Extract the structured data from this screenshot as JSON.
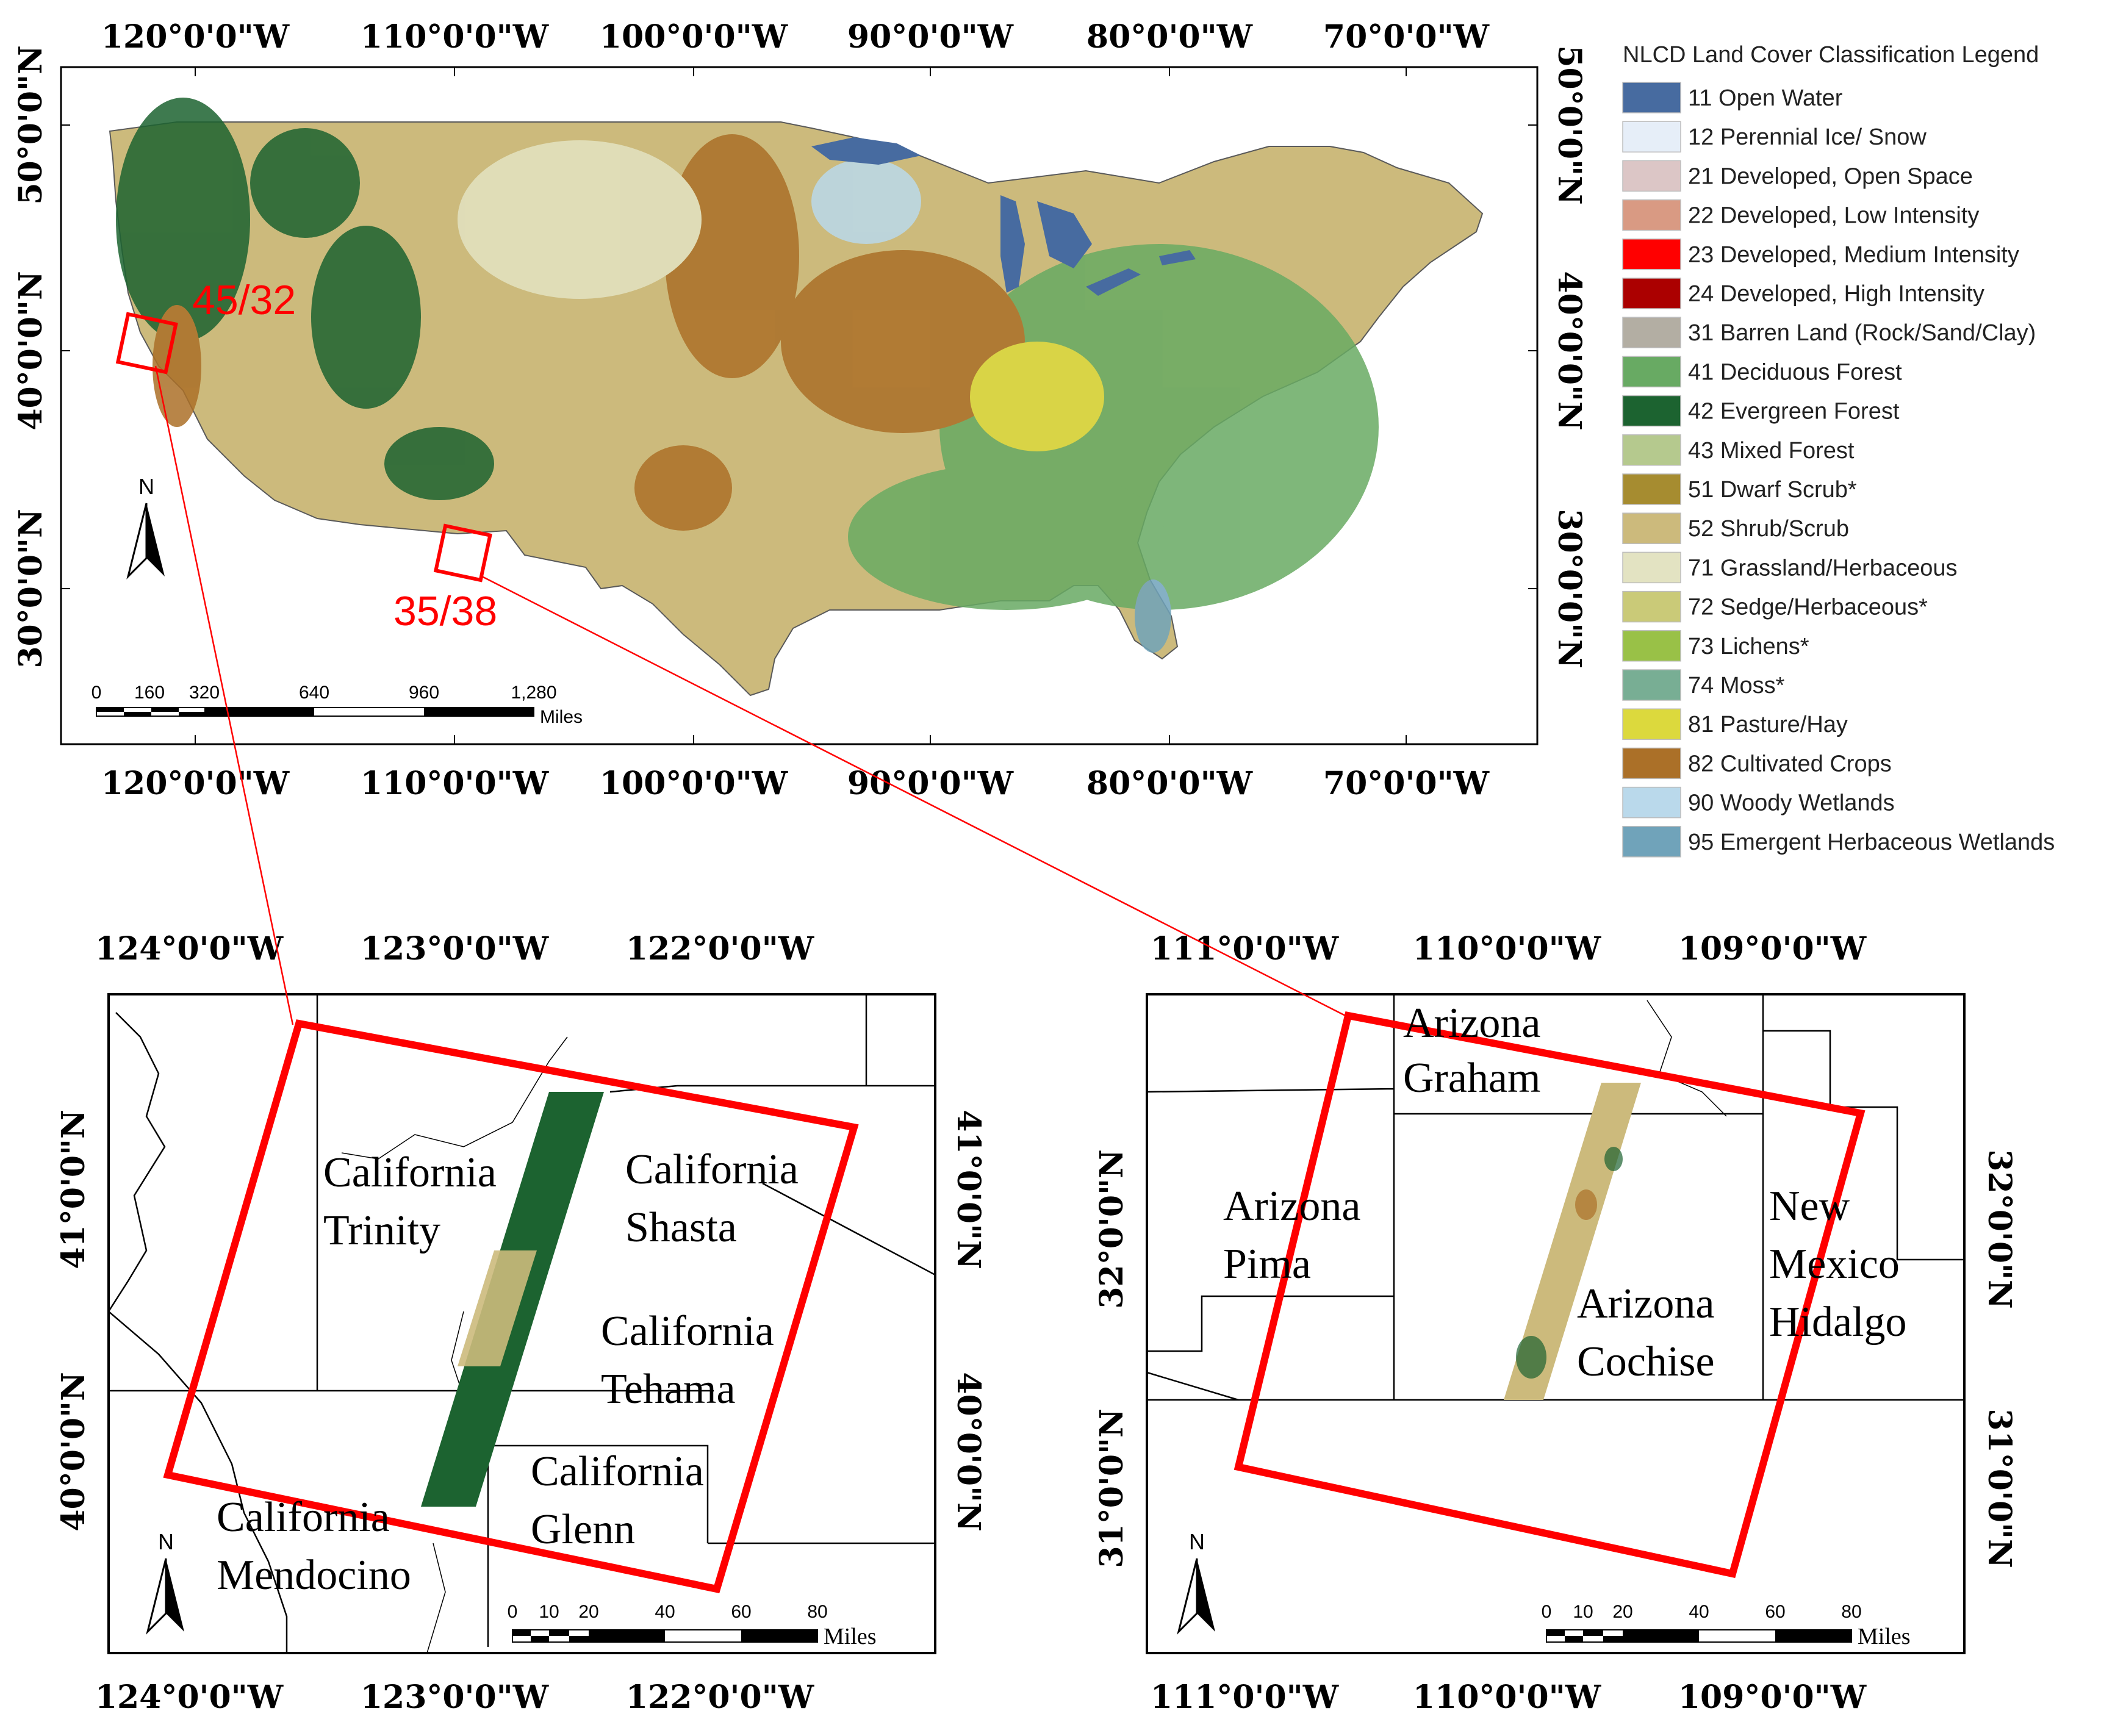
{
  "overview_map": {
    "lon_ticks": [
      "120°0'0\"W",
      "110°0'0\"W",
      "100°0'0\"W",
      "90°0'0\"W",
      "80°0'0\"W",
      "70°0'0\"W"
    ],
    "lat_ticks": [
      "50°0'0\"N",
      "40°0'0\"N",
      "30°0'0\"N"
    ],
    "scenes": [
      "45/32",
      "35/38"
    ],
    "scale_labels": [
      "0",
      "160",
      "320",
      "640",
      "960",
      "1,280"
    ],
    "scale_unit": "Miles",
    "north": "N"
  },
  "legend": {
    "title": "NLCD Land Cover Classification Legend",
    "items": [
      {
        "label": "11 Open Water",
        "color": "#476ba0"
      },
      {
        "label": "12 Perennial Ice/ Snow",
        "color": "#e6eef8"
      },
      {
        "label": "21 Developed, Open Space",
        "color": "#dcc6c6"
      },
      {
        "label": "22 Developed, Low Intensity",
        "color": "#d99a83"
      },
      {
        "label": "23 Developed, Medium Intensity",
        "color": "#ff0000"
      },
      {
        "label": "24 Developed, High Intensity",
        "color": "#ab0000"
      },
      {
        "label": "31 Barren Land (Rock/Sand/Clay)",
        "color": "#b3aea3"
      },
      {
        "label": "41 Deciduous Forest",
        "color": "#68aa63"
      },
      {
        "label": "42 Evergreen Forest",
        "color": "#1c6330"
      },
      {
        "label": "43 Mixed Forest",
        "color": "#b5c98e"
      },
      {
        "label": "51 Dwarf Scrub*",
        "color": "#a68c30"
      },
      {
        "label": "52 Shrub/Scrub",
        "color": "#ccba7c"
      },
      {
        "label": "71 Grassland/Herbaceous",
        "color": "#e3e3c2"
      },
      {
        "label": "72 Sedge/Herbaceous*",
        "color": "#caca78"
      },
      {
        "label": "73 Lichens*",
        "color": "#99c147"
      },
      {
        "label": "74 Moss*",
        "color": "#78ae94"
      },
      {
        "label": "81 Pasture/Hay",
        "color": "#dcd93d"
      },
      {
        "label": "82 Cultivated Crops",
        "color": "#ab7028"
      },
      {
        "label": "90 Woody Wetlands",
        "color": "#bad9eb"
      },
      {
        "label": "95 Emergent Herbaceous Wetlands",
        "color": "#70a3ba"
      }
    ]
  },
  "california_map": {
    "lon_ticks": [
      "124°0'0\"W",
      "123°0'0\"W",
      "122°0'0\"W"
    ],
    "lat_ticks": [
      "41°0'0\"N",
      "40°0'0\"N"
    ],
    "counties": [
      [
        "California",
        "Trinity"
      ],
      [
        "California",
        "Shasta"
      ],
      [
        "California",
        "Tehama"
      ],
      [
        "California",
        "Glenn"
      ],
      [
        "California",
        "Mendocino"
      ]
    ],
    "scale_labels": [
      "0",
      "10",
      "20",
      "40",
      "60",
      "80"
    ],
    "scale_unit": "Miles",
    "north": "N"
  },
  "arizona_map": {
    "lon_ticks": [
      "111°0'0\"W",
      "110°0'0\"W",
      "109°0'0\"W"
    ],
    "lat_ticks": [
      "32°0'0\"N",
      "31°0'0\"N"
    ],
    "counties": [
      [
        "Arizona",
        "Graham"
      ],
      [
        "Arizona",
        "Pima"
      ],
      [
        "Arizona",
        "Cochise"
      ],
      [
        "New",
        "Mexico",
        "Hidalgo"
      ]
    ],
    "scale_labels": [
      "0",
      "10",
      "20",
      "40",
      "60",
      "80"
    ],
    "scale_unit": "Miles",
    "north": "N"
  },
  "colors": {
    "scene_box": "#ff0000",
    "frame": "#000000"
  }
}
